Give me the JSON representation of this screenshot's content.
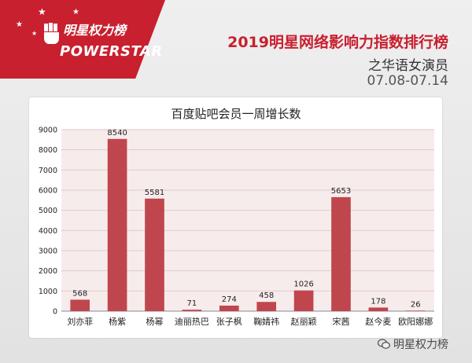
{
  "header": {
    "logo_cn": "明星权力榜",
    "logo_en": "POWERSTAR",
    "title": "2019明星网络影响力指数排行榜",
    "subtitle": "之华语女演员",
    "date_range": "07.08-07.14"
  },
  "chart_data": {
    "type": "bar",
    "title": "百度贴吧会员一周增长数",
    "xlabel": "",
    "ylabel": "",
    "categories": [
      "刘亦菲",
      "杨紫",
      "杨幂",
      "迪丽热巴",
      "张子枫",
      "鞠婧祎",
      "赵丽颖",
      "宋茜",
      "赵今麦",
      "欧阳娜娜"
    ],
    "values": [
      568,
      8540,
      5581,
      71,
      274,
      458,
      1026,
      5653,
      178,
      26
    ],
    "ylim": [
      0,
      9000
    ],
    "yticks": [
      0,
      1000,
      2000,
      3000,
      4000,
      5000,
      6000,
      7000,
      8000,
      9000
    ],
    "grid": true,
    "bar_color": "#c0464e",
    "plot_background": "#f7ecec"
  },
  "watermark": {
    "text": "明星权力榜",
    "icon": "wechat-icon"
  },
  "colors": {
    "brand_red": "#c8202f"
  }
}
